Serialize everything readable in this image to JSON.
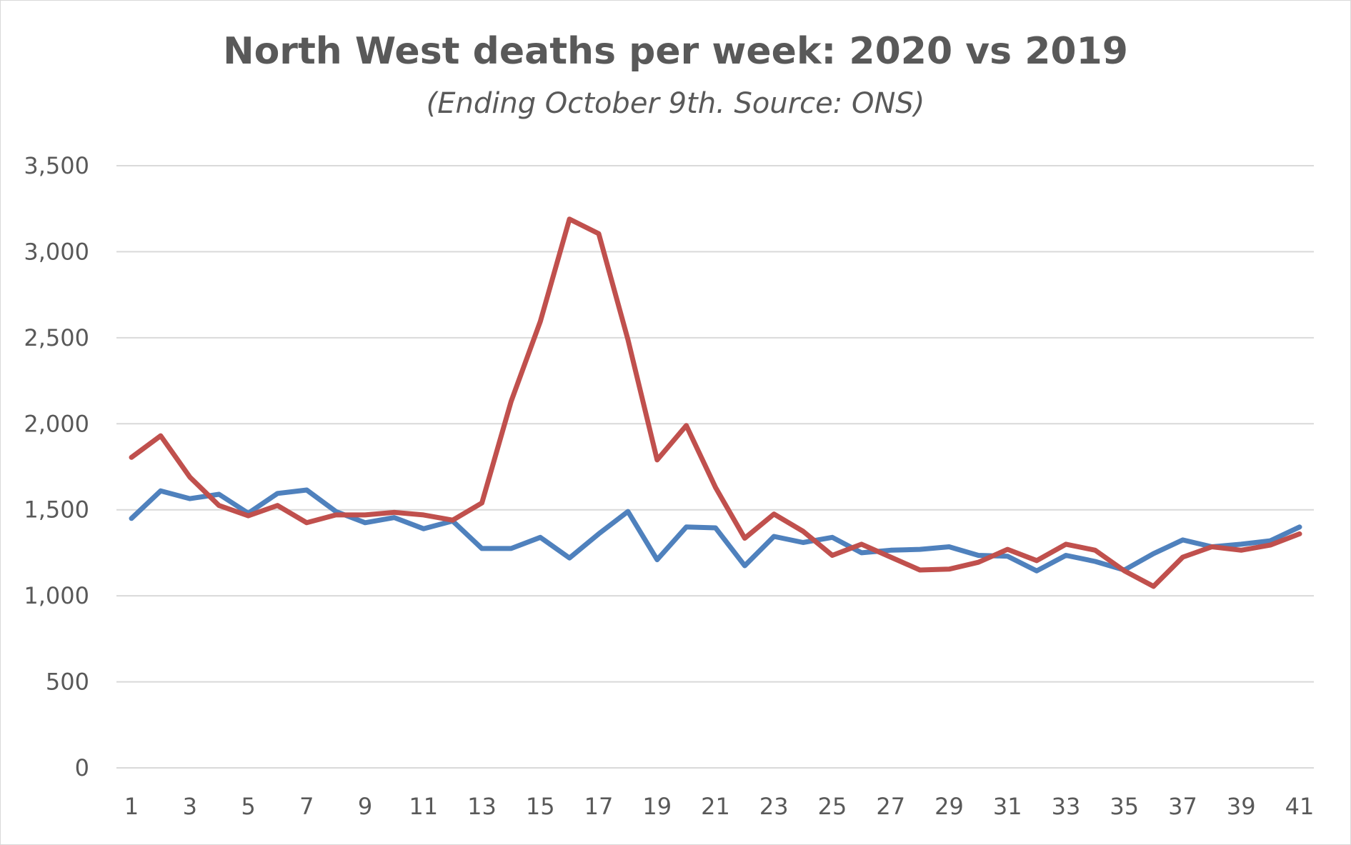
{
  "chart_data": {
    "type": "line",
    "title": "North West deaths per week: 2020 vs 2019",
    "subtitle": "(Ending October 9th. Source: ONS)",
    "xlabel": "",
    "ylabel": "",
    "ylim": [
      0,
      3500
    ],
    "yticks": [
      0,
      500,
      1000,
      1500,
      2000,
      2500,
      3000,
      3500
    ],
    "ytick_labels": [
      "0",
      "500",
      "1,000",
      "1,500",
      "2,000",
      "2,500",
      "3,000",
      "3,500"
    ],
    "x": [
      1,
      2,
      3,
      4,
      5,
      6,
      7,
      8,
      9,
      10,
      11,
      12,
      13,
      14,
      15,
      16,
      17,
      18,
      19,
      20,
      21,
      22,
      23,
      24,
      25,
      26,
      27,
      28,
      29,
      30,
      31,
      32,
      33,
      34,
      35,
      36,
      37,
      38,
      39,
      40,
      41
    ],
    "xtick_labels": [
      "1",
      "3",
      "5",
      "7",
      "9",
      "11",
      "13",
      "15",
      "17",
      "19",
      "21",
      "23",
      "25",
      "27",
      "29",
      "31",
      "33",
      "35",
      "37",
      "39",
      "41"
    ],
    "grid": true,
    "legend": "none",
    "series": [
      {
        "name": "2019",
        "color": "#4f81bd",
        "values": [
          1450,
          1610,
          1565,
          1590,
          1480,
          1595,
          1615,
          1490,
          1425,
          1455,
          1390,
          1435,
          1275,
          1275,
          1340,
          1220,
          1360,
          1490,
          1210,
          1400,
          1395,
          1175,
          1345,
          1310,
          1340,
          1250,
          1265,
          1270,
          1285,
          1235,
          1230,
          1145,
          1235,
          1200,
          1150,
          1245,
          1325,
          1285,
          1300,
          1320,
          1400
        ]
      },
      {
        "name": "2020",
        "color": "#c0504d",
        "values": [
          1805,
          1930,
          1690,
          1525,
          1465,
          1525,
          1425,
          1470,
          1470,
          1485,
          1470,
          1440,
          1540,
          2130,
          2595,
          3190,
          3105,
          2490,
          1790,
          1990,
          1630,
          1335,
          1475,
          1375,
          1235,
          1300,
          1225,
          1150,
          1155,
          1195,
          1270,
          1205,
          1300,
          1265,
          1145,
          1055,
          1225,
          1285,
          1265,
          1295,
          1360
        ]
      }
    ]
  }
}
